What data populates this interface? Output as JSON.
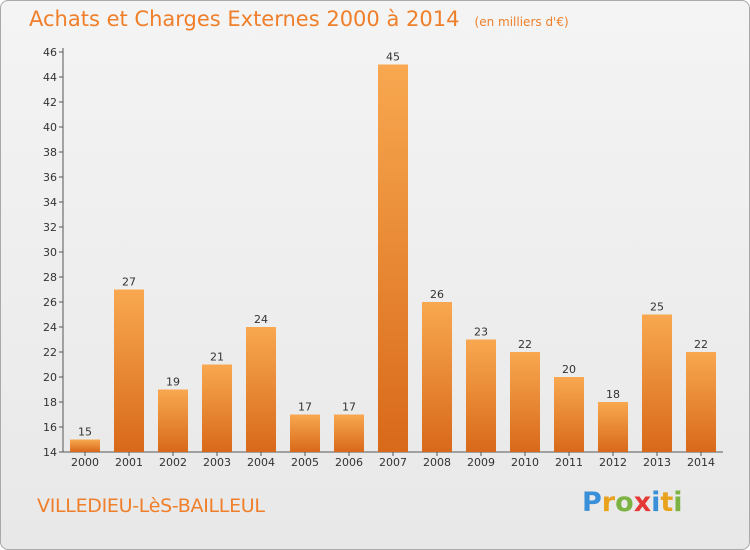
{
  "chart_data": {
    "type": "bar",
    "title": "Achats et Charges Externes 2000 à 2014",
    "subtitle": "(en milliers d'€)",
    "categories": [
      "2000",
      "2001",
      "2002",
      "2003",
      "2004",
      "2005",
      "2006",
      "2007",
      "2008",
      "2009",
      "2010",
      "2011",
      "2012",
      "2013",
      "2014"
    ],
    "values": [
      15,
      27,
      19,
      21,
      24,
      17,
      17,
      45,
      26,
      23,
      22,
      20,
      18,
      25,
      22
    ],
    "ylim": [
      14,
      46
    ],
    "yticks": [
      14,
      16,
      18,
      20,
      22,
      24,
      26,
      28,
      30,
      32,
      34,
      36,
      38,
      40,
      42,
      44,
      46
    ],
    "grid": false,
    "bar_color": "#f09a3e",
    "axis_color": "#555555"
  },
  "footer": {
    "commune": "VILLEDIEU-LèS-BAILLEUL"
  },
  "brand": {
    "letters": [
      "P",
      "r",
      "o",
      "x",
      "i",
      "t",
      "i"
    ],
    "colors": [
      "#3a8fd9",
      "#e8a21d",
      "#7cb342",
      "#e53935",
      "#3a8fd9",
      "#e8a21d",
      "#7cb342"
    ]
  }
}
